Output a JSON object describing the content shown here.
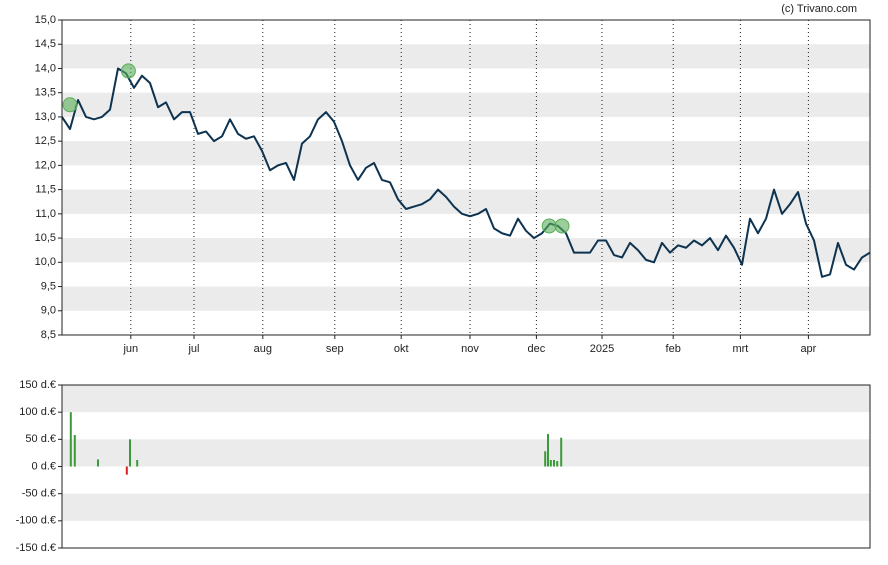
{
  "source": "(c) Trivano.com",
  "chart_data": [
    {
      "type": "line",
      "xlim": [
        0,
        101
      ],
      "xticks": [
        {
          "value": 8.6,
          "label": "jun"
        },
        {
          "value": 16.5,
          "label": "jul"
        },
        {
          "value": 25.1,
          "label": "aug"
        },
        {
          "value": 34.1,
          "label": "sep"
        },
        {
          "value": 42.4,
          "label": "okt"
        },
        {
          "value": 51,
          "label": "nov"
        },
        {
          "value": 59.3,
          "label": "dec"
        },
        {
          "value": 67.5,
          "label": "2025"
        },
        {
          "value": 76.4,
          "label": "feb"
        },
        {
          "value": 84.8,
          "label": "mrt"
        },
        {
          "value": 93.3,
          "label": "apr"
        }
      ],
      "ylim": [
        8.5,
        15
      ],
      "yticks": [
        {
          "value": 8.5,
          "label": "8,5"
        },
        {
          "value": 9,
          "label": "9,0"
        },
        {
          "value": 9.5,
          "label": "9,5"
        },
        {
          "value": 10,
          "label": "10,0"
        },
        {
          "value": 10.5,
          "label": "10,5"
        },
        {
          "value": 11,
          "label": "11,0"
        },
        {
          "value": 11.5,
          "label": "11,5"
        },
        {
          "value": 12,
          "label": "12,0"
        },
        {
          "value": 12.5,
          "label": "12,5"
        },
        {
          "value": 13,
          "label": "13,0"
        },
        {
          "value": 13.5,
          "label": "13,5"
        },
        {
          "value": 14,
          "label": "14,0"
        },
        {
          "value": 14.5,
          "label": "14,5"
        },
        {
          "value": 15,
          "label": "15,0"
        }
      ],
      "color": "#0d3350",
      "values": [
        13.0,
        12.75,
        13.35,
        13.0,
        12.95,
        13.0,
        13.15,
        14.0,
        13.9,
        13.6,
        13.85,
        13.7,
        13.2,
        13.3,
        12.95,
        13.1,
        13.1,
        12.65,
        12.7,
        12.5,
        12.6,
        12.95,
        12.65,
        12.55,
        12.6,
        12.3,
        11.9,
        12.0,
        12.05,
        11.7,
        12.45,
        12.6,
        12.95,
        13.1,
        12.9,
        12.5,
        12.0,
        11.7,
        11.95,
        12.05,
        11.7,
        11.65,
        11.3,
        11.1,
        11.15,
        11.2,
        11.3,
        11.5,
        11.35,
        11.15,
        11.0,
        10.95,
        11.0,
        11.1,
        10.7,
        10.6,
        10.55,
        10.9,
        10.65,
        10.5,
        10.6,
        10.8,
        10.75,
        10.6,
        10.2,
        10.2,
        10.2,
        10.45,
        10.45,
        10.15,
        10.1,
        10.4,
        10.25,
        10.05,
        10.0,
        10.4,
        10.2,
        10.35,
        10.3,
        10.45,
        10.35,
        10.5,
        10.25,
        10.55,
        10.3,
        9.95,
        10.9,
        10.6,
        10.9,
        11.5,
        11.0,
        11.2,
        11.45,
        10.8,
        10.45,
        9.7,
        9.75,
        10.4,
        9.95,
        9.85,
        10.1,
        10.2
      ],
      "markers": {
        "x": [
          1,
          8.3,
          60.9,
          62.5
        ],
        "values": [
          13.25,
          13.95,
          10.75,
          10.75
        ],
        "color": "#5aae5a"
      }
    },
    {
      "type": "bar",
      "xlim": [
        0,
        101
      ],
      "ylim": [
        -150,
        150
      ],
      "yticks": [
        {
          "value": -150,
          "label": "-150 d.€"
        },
        {
          "value": -100,
          "label": "-100 d.€"
        },
        {
          "value": -50,
          "label": "-50 d.€"
        },
        {
          "value": 0,
          "label": "0 d.€"
        },
        {
          "value": 50,
          "label": "50 d.€"
        },
        {
          "value": 100,
          "label": "100 d.€"
        },
        {
          "value": 150,
          "label": "150 d.€"
        }
      ],
      "x": [
        1.1,
        1.6,
        4.5,
        8.1,
        8.5,
        9.4,
        60.4,
        60.75,
        61.1,
        61.5,
        61.9,
        62.4
      ],
      "values": [
        100,
        58,
        13,
        -15,
        50,
        12,
        28,
        60,
        12,
        12,
        10,
        53
      ],
      "color_up": "#3a9a3a",
      "color_down": "#d62020"
    }
  ]
}
